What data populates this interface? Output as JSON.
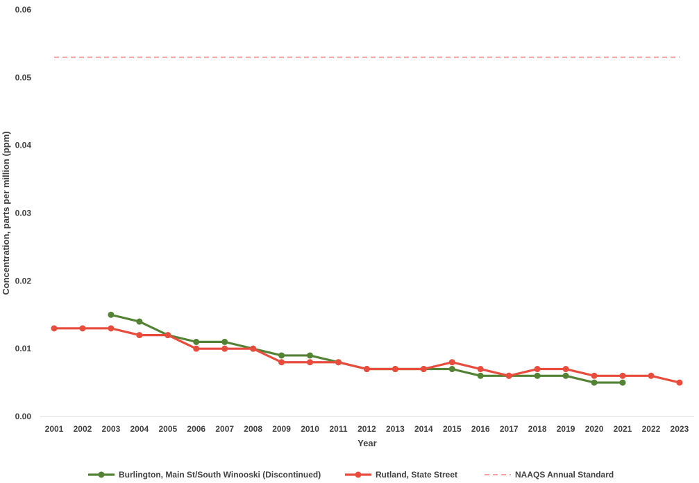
{
  "chart_data": {
    "type": "line",
    "title": "",
    "xlabel": "Year",
    "ylabel": "Concentration, parts per million (ppm)",
    "categories": [
      "2001",
      "2002",
      "2003",
      "2004",
      "2005",
      "2006",
      "2007",
      "2008",
      "2009",
      "2010",
      "2011",
      "2012",
      "2013",
      "2014",
      "2015",
      "2016",
      "2017",
      "2018",
      "2019",
      "2020",
      "2021",
      "2022",
      "2023"
    ],
    "ylim": [
      0,
      0.06
    ],
    "yticks": [
      0,
      0.01,
      0.02,
      0.03,
      0.04,
      0.05,
      0.06
    ],
    "ytick_labels": [
      "0.00",
      "0.01",
      "0.02",
      "0.03",
      "0.04",
      "0.05",
      "0.06"
    ],
    "grid": false,
    "legend_position": "bottom",
    "series": [
      {
        "name": "Burlington, Main St/South Winooski (Discontinued)",
        "color": "#548235",
        "values": [
          null,
          null,
          0.015,
          0.014,
          0.012,
          0.011,
          0.011,
          0.01,
          0.009,
          0.009,
          0.008,
          0.007,
          0.007,
          0.007,
          0.007,
          0.006,
          0.006,
          0.006,
          0.006,
          0.005,
          0.005,
          null,
          null
        ]
      },
      {
        "name": "Rutland, State Street",
        "color": "#e84c3d",
        "values": [
          0.013,
          0.013,
          0.013,
          0.012,
          0.012,
          0.01,
          0.01,
          0.01,
          0.008,
          0.008,
          0.008,
          0.007,
          0.007,
          0.007,
          0.008,
          0.007,
          0.006,
          0.007,
          0.007,
          0.006,
          0.006,
          0.006,
          0.005
        ]
      }
    ],
    "reference_lines": [
      {
        "name": "NAAQS Annual Standard",
        "value": 0.053,
        "color": "#f08080",
        "dashed": true
      }
    ]
  }
}
